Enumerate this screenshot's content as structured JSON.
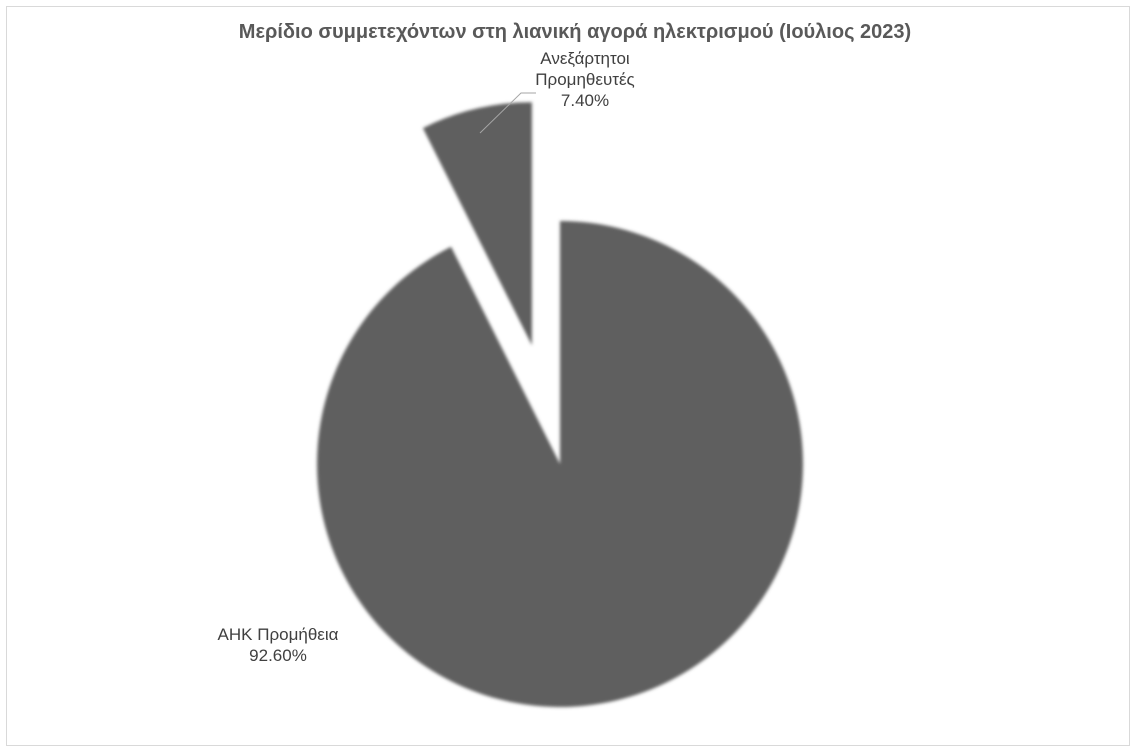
{
  "chart_data": {
    "type": "pie",
    "title": "Μερίδιο συμμετεχόντων στη λιανική αγορά ηλεκτρισμού (Ιούλιος 2023)",
    "slices": [
      {
        "label_lines": [
          "Ανεξάρτητοι",
          "Προμηθευτές"
        ],
        "value": 7.4,
        "value_label": "7.40%",
        "exploded": true,
        "color": "#5f5f5f"
      },
      {
        "label_lines": [
          "ΑΗΚ Προμήθεια"
        ],
        "value": 92.6,
        "value_label": "92.60%",
        "exploded": false,
        "color": "#5f5f5f"
      }
    ],
    "legend": "none"
  }
}
